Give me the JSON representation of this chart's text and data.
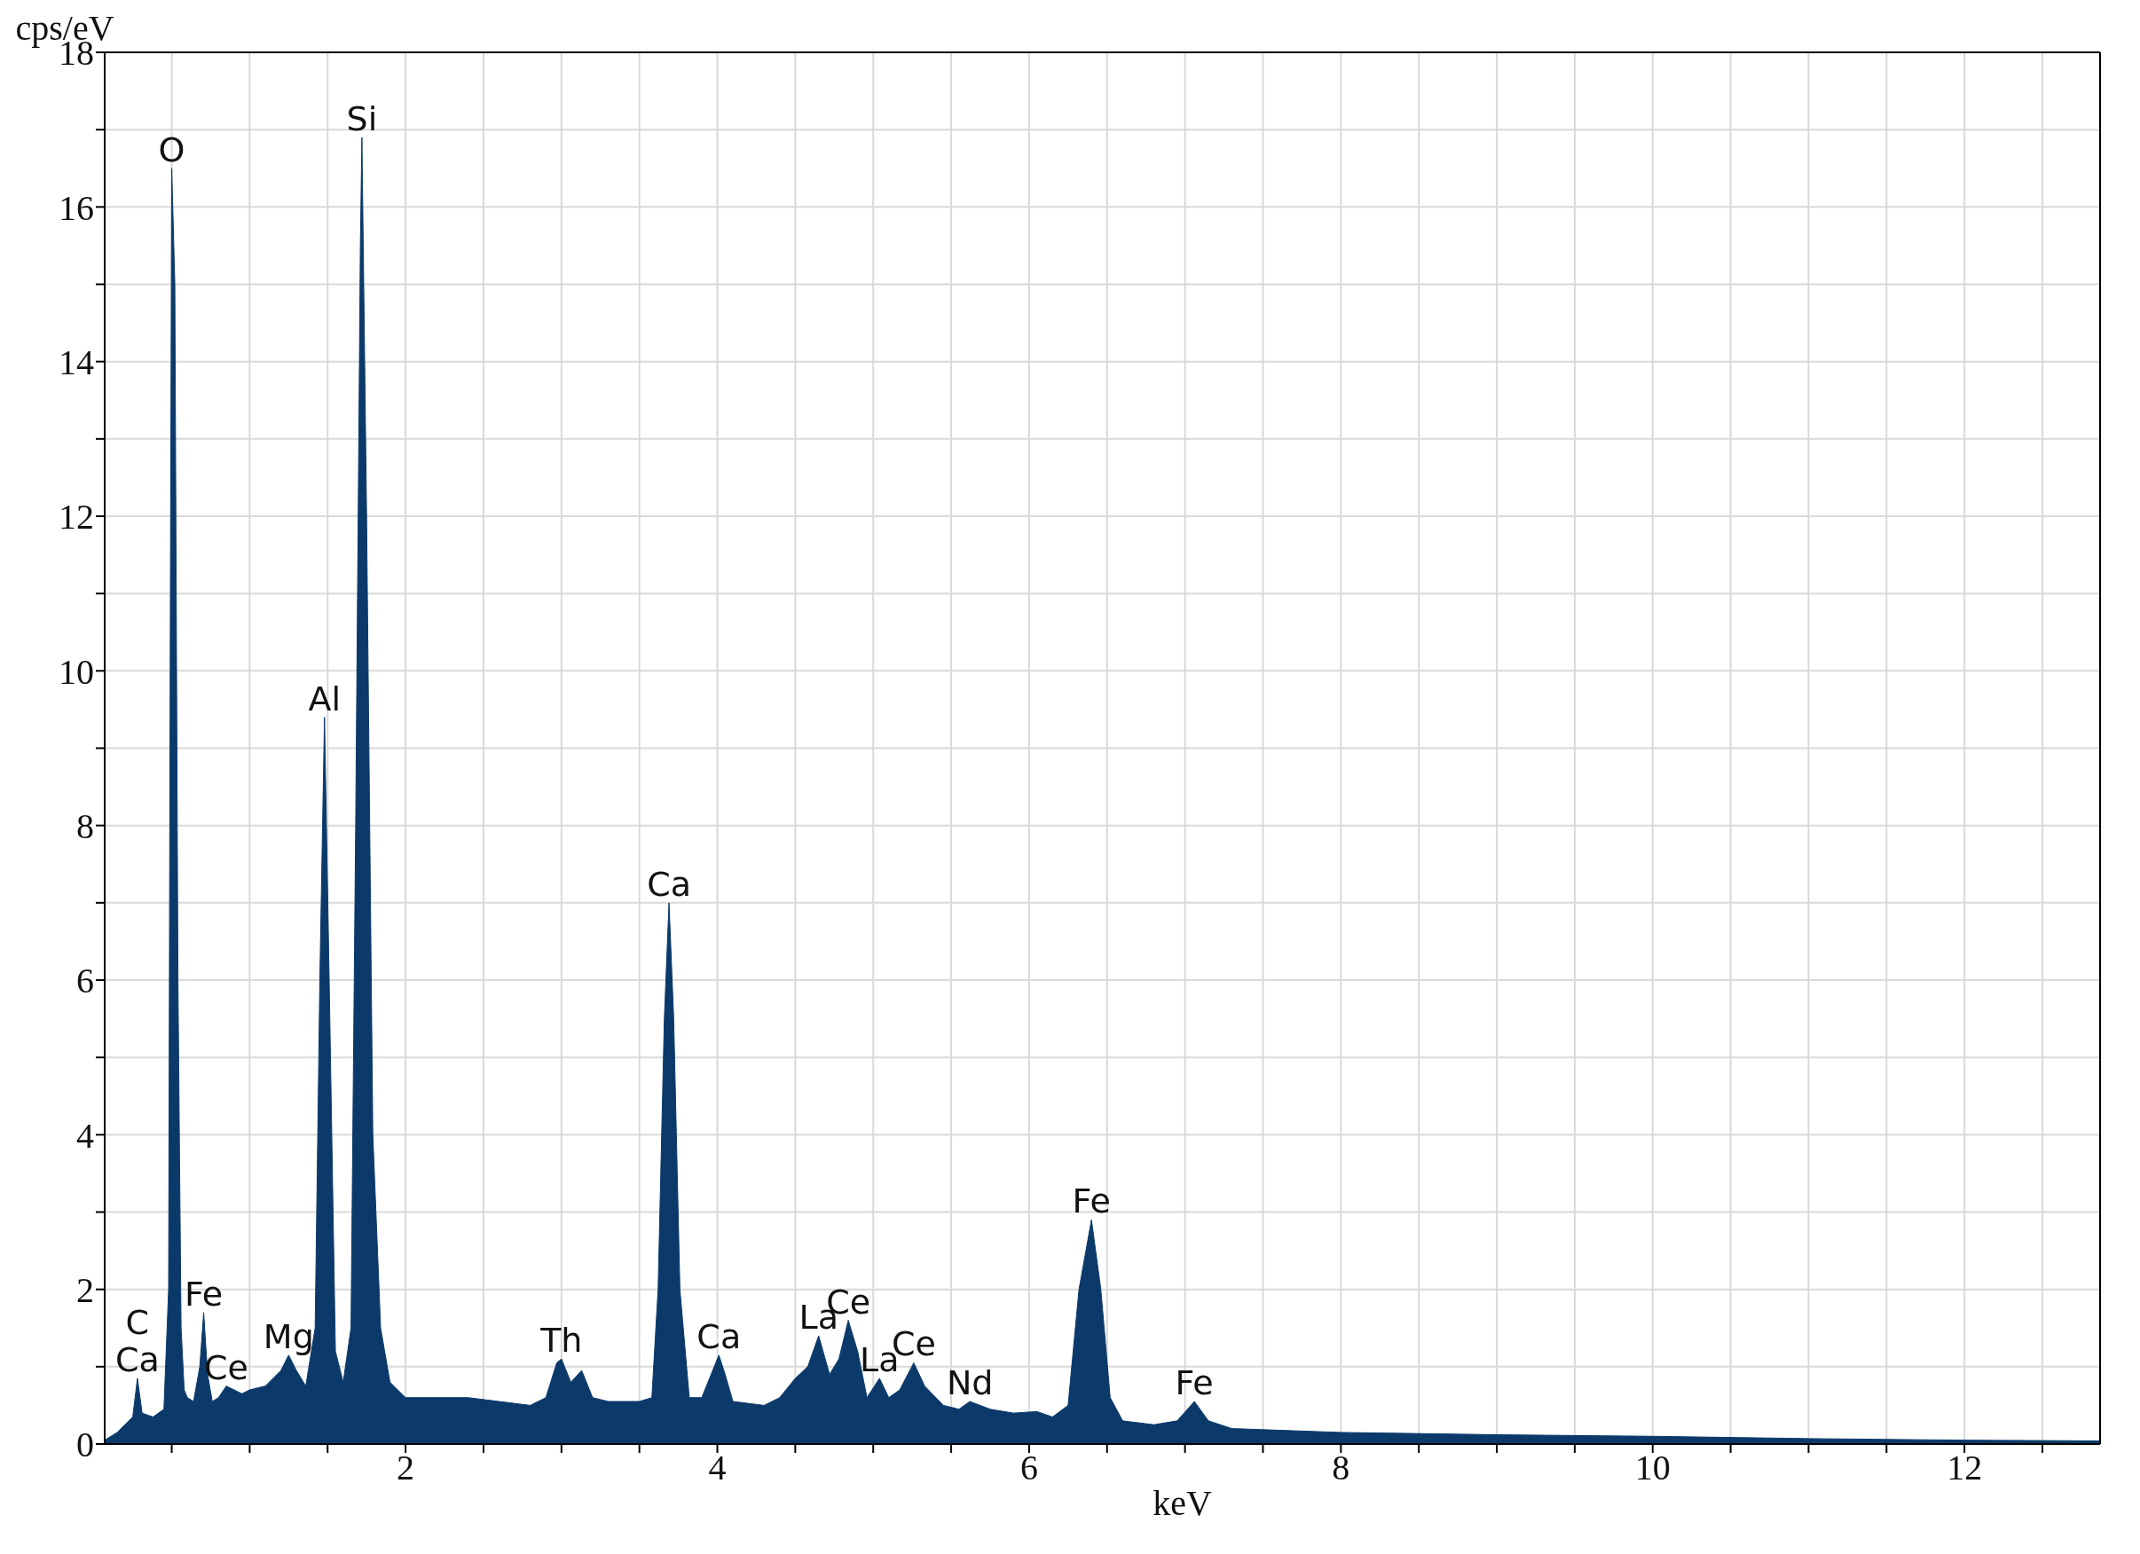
{
  "chart_data": {
    "type": "area",
    "xlabel": "keV",
    "ylabel": "cps/eV",
    "xlim": [
      0.07,
      12.87
    ],
    "ylim": [
      0,
      18
    ],
    "xticks": [
      {
        "value": 0.5,
        "label": null
      },
      {
        "value": 1,
        "label": null
      },
      {
        "value": 1.5,
        "label": null
      },
      2,
      {
        "value": 2.5,
        "label": null
      },
      {
        "value": 3,
        "label": null
      },
      {
        "value": 3.5,
        "label": null
      },
      4,
      {
        "value": 4.5,
        "label": null
      },
      {
        "value": 5,
        "label": null
      },
      {
        "value": 5.5,
        "label": null
      },
      6,
      {
        "value": 6.5,
        "label": null
      },
      {
        "value": 7,
        "label": null
      },
      {
        "value": 7.5,
        "label": null
      },
      8,
      {
        "value": 8.5,
        "label": null
      },
      {
        "value": 9,
        "label": null
      },
      {
        "value": 9.5,
        "label": null
      },
      10,
      {
        "value": 10.5,
        "label": null
      },
      {
        "value": 11,
        "label": null
      },
      {
        "value": 11.5,
        "label": null
      },
      12,
      {
        "value": 12.5,
        "label": null
      }
    ],
    "yticks": [
      0,
      {
        "value": 1,
        "label": null
      },
      2,
      {
        "value": 3,
        "label": null
      },
      4,
      {
        "value": 5,
        "label": null
      },
      6,
      {
        "value": 7,
        "label": null
      },
      8,
      {
        "value": 9,
        "label": null
      },
      10,
      {
        "value": 11,
        "label": null
      },
      12,
      {
        "value": 13,
        "label": null
      },
      14,
      {
        "value": 15,
        "label": null
      },
      16,
      {
        "value": 17,
        "label": null
      },
      18
    ],
    "grid": true,
    "legend": false,
    "series": [
      {
        "color": "#0b3a6a",
        "x": [
          0.07,
          0.15,
          0.2,
          0.25,
          0.28,
          0.31,
          0.38,
          0.45,
          0.48,
          0.49,
          0.5,
          0.52,
          0.54,
          0.56,
          0.58,
          0.6,
          0.64,
          0.68,
          0.705,
          0.73,
          0.76,
          0.8,
          0.85,
          0.9,
          0.95,
          1.0,
          1.1,
          1.2,
          1.25,
          1.3,
          1.36,
          1.42,
          1.45,
          1.48,
          1.51,
          1.55,
          1.6,
          1.65,
          1.68,
          1.71,
          1.72,
          1.75,
          1.79,
          1.84,
          1.9,
          2.0,
          2.2,
          2.4,
          2.6,
          2.8,
          2.9,
          2.97,
          3.0,
          3.06,
          3.13,
          3.2,
          3.3,
          3.5,
          3.58,
          3.62,
          3.66,
          3.69,
          3.72,
          3.76,
          3.82,
          3.9,
          3.96,
          4.01,
          4.05,
          4.1,
          4.3,
          4.4,
          4.5,
          4.58,
          4.65,
          4.72,
          4.78,
          4.84,
          4.9,
          4.96,
          5.04,
          5.1,
          5.17,
          5.26,
          5.33,
          5.45,
          5.55,
          5.62,
          5.75,
          5.9,
          6.05,
          6.15,
          6.25,
          6.32,
          6.4,
          6.46,
          6.52,
          6.6,
          6.8,
          6.95,
          7.06,
          7.15,
          7.3,
          8,
          9,
          10,
          11,
          12,
          12.87
        ],
        "values": [
          0.05,
          0.15,
          0.25,
          0.35,
          0.85,
          0.4,
          0.35,
          0.45,
          2,
          10,
          16.5,
          15,
          6,
          1.5,
          0.7,
          0.6,
          0.55,
          1.0,
          1.7,
          0.9,
          0.55,
          0.6,
          0.75,
          0.7,
          0.65,
          0.7,
          0.75,
          0.95,
          1.15,
          0.95,
          0.75,
          1.5,
          6,
          9.4,
          6,
          1.2,
          0.8,
          1.5,
          8,
          15.5,
          16.9,
          12,
          4,
          1.5,
          0.8,
          0.6,
          0.6,
          0.6,
          0.55,
          0.5,
          0.6,
          1.05,
          1.1,
          0.8,
          0.95,
          0.6,
          0.55,
          0.55,
          0.6,
          2,
          5.5,
          7.0,
          5.5,
          2,
          0.6,
          0.6,
          0.9,
          1.15,
          0.9,
          0.55,
          0.5,
          0.6,
          0.85,
          1.0,
          1.4,
          0.9,
          1.1,
          1.6,
          1.2,
          0.6,
          0.85,
          0.6,
          0.7,
          1.05,
          0.75,
          0.5,
          0.45,
          0.55,
          0.45,
          0.4,
          0.42,
          0.35,
          0.5,
          2.0,
          2.9,
          2.0,
          0.6,
          0.3,
          0.25,
          0.3,
          0.55,
          0.3,
          0.2,
          0.15,
          0.12,
          0.1,
          0.07,
          0.05,
          0.04
        ]
      }
    ],
    "annotations": [
      {
        "text": "C",
        "x": 0.28,
        "y": 0.85
      },
      {
        "text": "Ca",
        "x": 0.28,
        "y": 0.85
      },
      {
        "text": "O",
        "x": 0.5,
        "y": 16.5
      },
      {
        "text": "Fe",
        "x": 0.705,
        "y": 1.7
      },
      {
        "text": "Ce",
        "x": 0.85,
        "y": 0.75
      },
      {
        "text": "Mg",
        "x": 1.25,
        "y": 1.15
      },
      {
        "text": "Al",
        "x": 1.48,
        "y": 9.4
      },
      {
        "text": "Si",
        "x": 1.72,
        "y": 16.9
      },
      {
        "text": "Th",
        "x": 3.0,
        "y": 1.1
      },
      {
        "text": "Ca",
        "x": 3.69,
        "y": 7.0
      },
      {
        "text": "Ca",
        "x": 4.01,
        "y": 1.15
      },
      {
        "text": "La",
        "x": 4.65,
        "y": 1.4
      },
      {
        "text": "Ce",
        "x": 4.84,
        "y": 1.6
      },
      {
        "text": "La",
        "x": 5.04,
        "y": 0.85
      },
      {
        "text": "Ce",
        "x": 5.26,
        "y": 1.05
      },
      {
        "text": "Nd",
        "x": 5.62,
        "y": 0.55
      },
      {
        "text": "Fe",
        "x": 6.4,
        "y": 2.9
      },
      {
        "text": "Fe",
        "x": 7.06,
        "y": 0.55
      }
    ]
  }
}
